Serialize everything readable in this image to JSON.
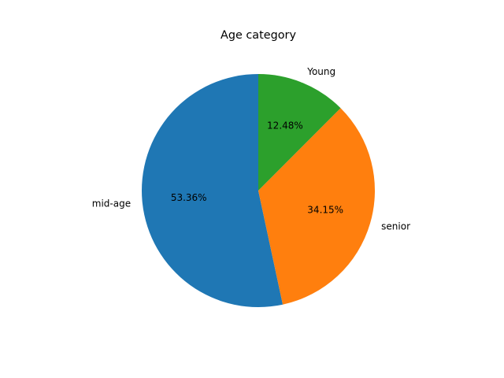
{
  "chart_data": {
    "type": "pie",
    "title": "Age category",
    "slices": [
      {
        "label": "mid-age",
        "value": 53.36,
        "pct_label": "53.36%",
        "color": "#1f77b4"
      },
      {
        "label": "senior",
        "value": 34.15,
        "pct_label": "34.15%",
        "color": "#ff7f0e"
      },
      {
        "label": "Young",
        "value": 12.48,
        "pct_label": "12.48%",
        "color": "#2ca02c"
      }
    ],
    "start_angle_deg": 90,
    "direction": "counterclockwise",
    "legend": "none"
  }
}
